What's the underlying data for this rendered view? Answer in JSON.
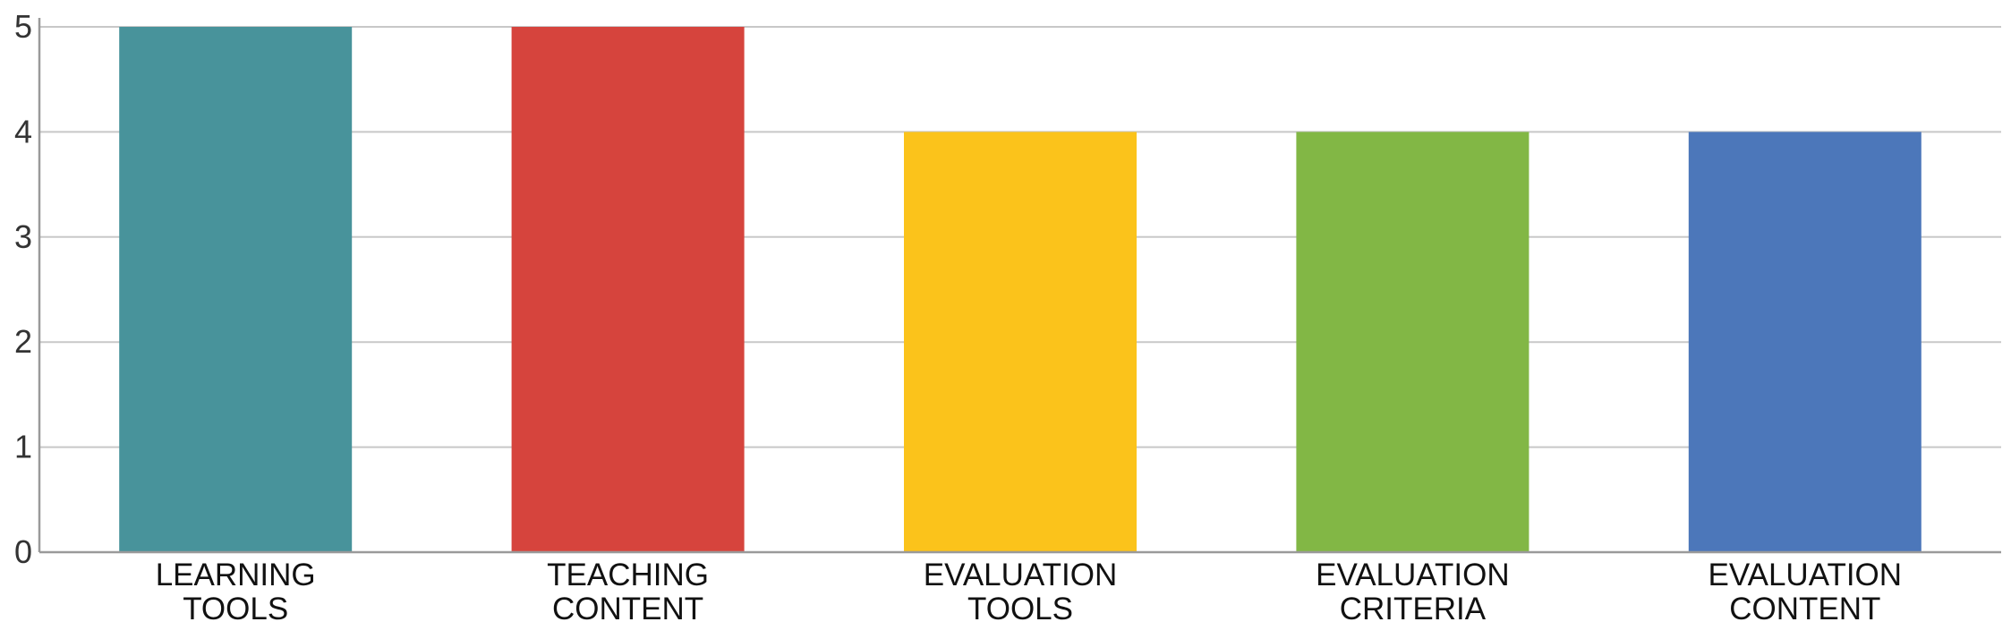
{
  "chart_data": {
    "type": "bar",
    "title": "",
    "xlabel": "",
    "ylabel": "",
    "ylim": [
      0,
      5
    ],
    "yticks": [
      0,
      1,
      2,
      3,
      4,
      5
    ],
    "grid": true,
    "categories": [
      [
        "LEARNING",
        "TOOLS"
      ],
      [
        "TEACHING",
        "CONTENT"
      ],
      [
        "EVALUATION",
        "TOOLS"
      ],
      [
        "EVALUATION",
        "CRITERIA"
      ],
      [
        "EVALUATION",
        "CONTENT"
      ]
    ],
    "values": [
      5,
      5,
      4,
      4,
      4
    ],
    "colors": [
      "#48939B",
      "#D6443D",
      "#FBC31B",
      "#82B745",
      "#4C77BA"
    ],
    "gridline_color": "#C8C8C8",
    "axis_color": "#9A9A9A"
  }
}
